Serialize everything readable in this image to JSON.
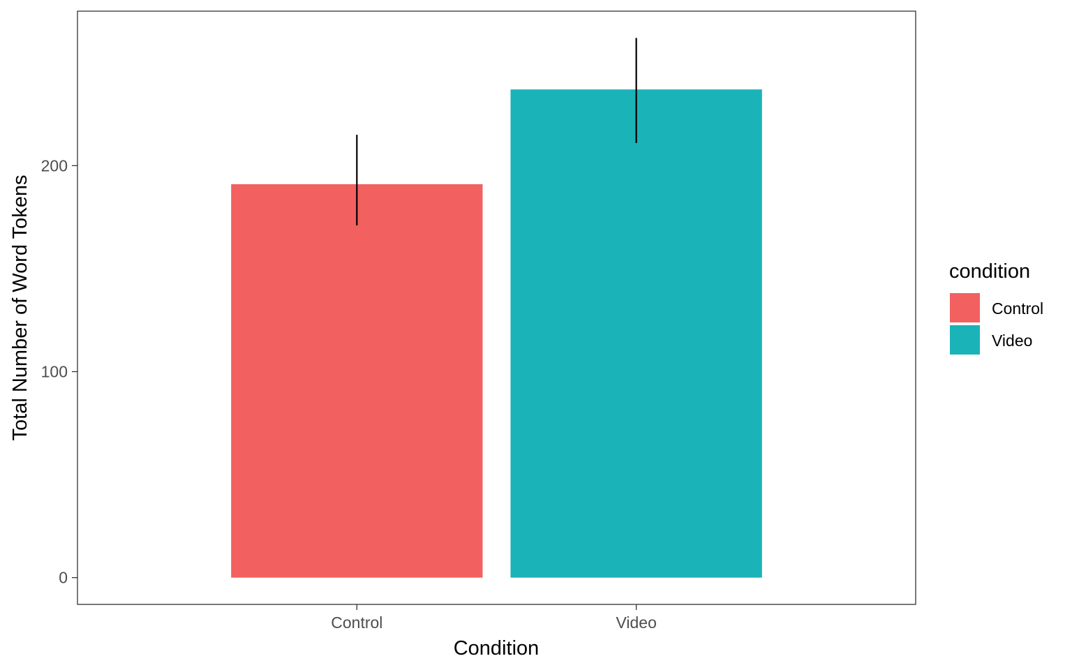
{
  "chart_data": {
    "type": "bar",
    "title": "",
    "xlabel": "Condition",
    "ylabel": "Total Number of Word Tokens",
    "categories": [
      "Control",
      "Video"
    ],
    "values": [
      191,
      237
    ],
    "error_bars": [
      {
        "category": "Control",
        "low": 171,
        "high": 215
      },
      {
        "category": "Video",
        "low": 211,
        "high": 262
      }
    ],
    "colors": [
      "#F26060",
      "#1AB3B8"
    ],
    "ylim": [
      -13,
      275
    ],
    "yticks": [
      0,
      100,
      200
    ],
    "ytick_labels": [
      "0",
      "100",
      "200"
    ],
    "grid": false,
    "legend": {
      "title": "condition",
      "placement": "right",
      "entries": [
        {
          "label": "Control",
          "color": "#F26060"
        },
        {
          "label": "Video",
          "color": "#1AB3B8"
        }
      ]
    }
  }
}
